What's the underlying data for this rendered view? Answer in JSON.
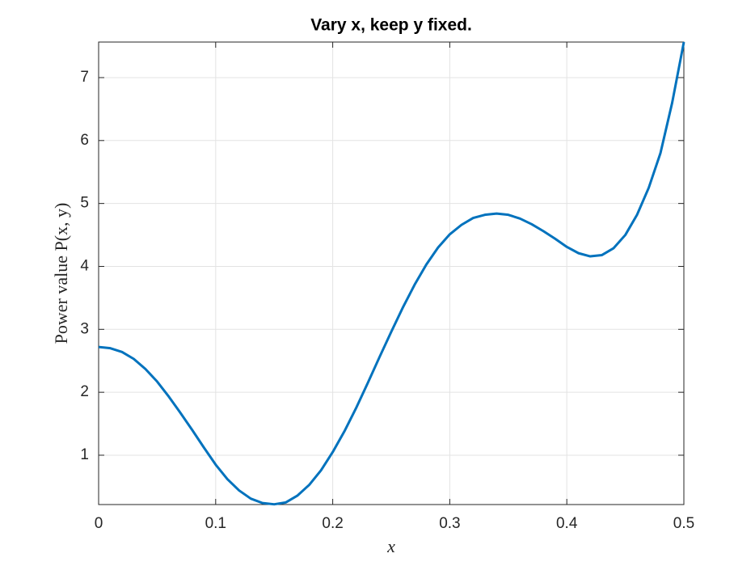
{
  "chart_data": {
    "type": "line",
    "title": "Vary x, keep y fixed.",
    "xlabel": "x",
    "ylabel": "Power value P(x, y)",
    "x": [
      0,
      0.01,
      0.02,
      0.03,
      0.04,
      0.05,
      0.06,
      0.07,
      0.08,
      0.09,
      0.1,
      0.11,
      0.12,
      0.13,
      0.14,
      0.15,
      0.16,
      0.17,
      0.18,
      0.19,
      0.2,
      0.21,
      0.22,
      0.23,
      0.24,
      0.25,
      0.26,
      0.27,
      0.28,
      0.29,
      0.3,
      0.31,
      0.32,
      0.33,
      0.34,
      0.35,
      0.36,
      0.37,
      0.38,
      0.39,
      0.4,
      0.41,
      0.42,
      0.43,
      0.44,
      0.45,
      0.46,
      0.47,
      0.48,
      0.49,
      0.5
    ],
    "values": [
      2.72,
      2.7,
      2.64,
      2.53,
      2.37,
      2.17,
      1.93,
      1.67,
      1.4,
      1.12,
      0.85,
      0.62,
      0.44,
      0.31,
      0.24,
      0.22,
      0.25,
      0.36,
      0.53,
      0.76,
      1.05,
      1.38,
      1.75,
      2.15,
      2.56,
      2.96,
      3.35,
      3.71,
      4.03,
      4.3,
      4.51,
      4.66,
      4.77,
      4.82,
      4.84,
      4.82,
      4.76,
      4.67,
      4.56,
      4.44,
      4.31,
      4.21,
      4.16,
      4.18,
      4.29,
      4.5,
      4.82,
      5.25,
      5.8,
      6.6,
      7.565
    ],
    "color": "#0072bd",
    "xlim": [
      0,
      0.5
    ],
    "xticks": [
      0,
      0.1,
      0.2,
      0.3,
      0.4,
      0.5
    ],
    "ylim": [
      0.216,
      7.565
    ],
    "yticks": [
      1,
      2,
      3,
      4,
      5,
      6,
      7
    ],
    "grid": true
  }
}
